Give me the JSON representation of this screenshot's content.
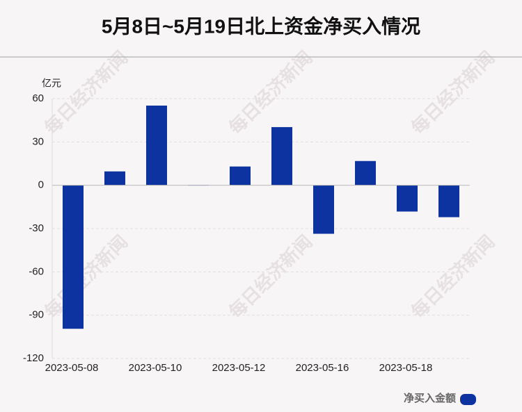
{
  "chart_data": {
    "type": "bar",
    "title": "5月8日~5月19日北上资金净买入情况",
    "y_label": "亿元",
    "watermark": "每日经济新闻",
    "categories": [
      "2023-05-08",
      null,
      "2023-05-10",
      null,
      "2023-05-12",
      null,
      "2023-05-16",
      null,
      "2023-05-18",
      null
    ],
    "series": [
      {
        "name": "净买入金额",
        "color": "#0c33a0",
        "values": [
          -99.4,
          9.6,
          55.2,
          0.3,
          13.0,
          40.3,
          -33.6,
          16.8,
          -18.2,
          -22.1
        ]
      }
    ],
    "ylim": [
      -120,
      60
    ],
    "yticks": [
      -120,
      -90,
      -60,
      -30,
      0,
      30,
      60
    ],
    "grid": true,
    "legend": "bottom-right"
  }
}
